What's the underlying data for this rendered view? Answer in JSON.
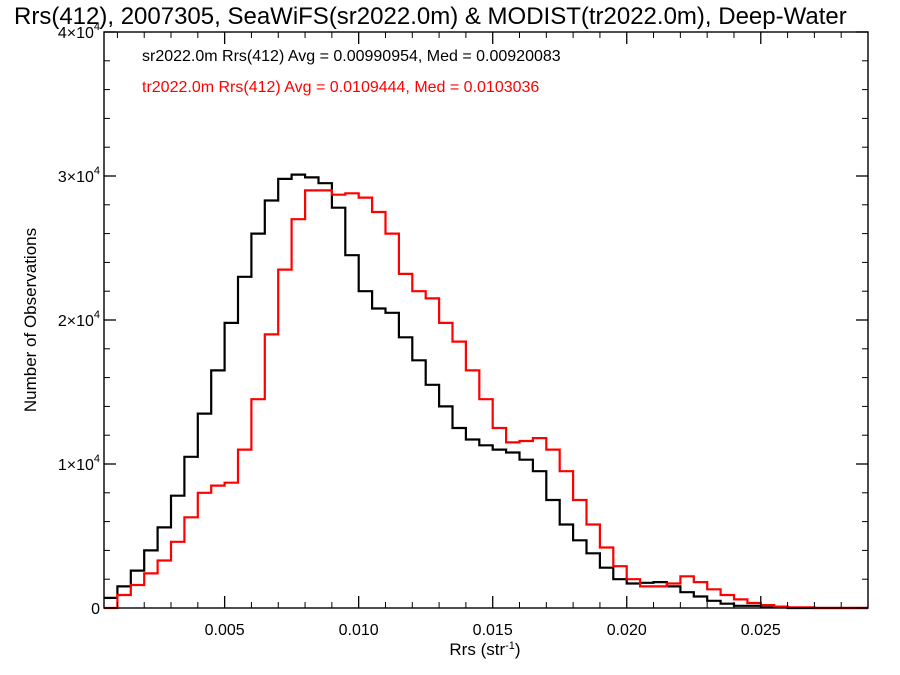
{
  "chart_data": {
    "type": "line",
    "title": "Rrs(412), 2007305, SeaWiFS(sr2022.0m) & MODIST(tr2022.0m), Deep-Water",
    "xlabel": "Rrs (str",
    "xlabel_sup": "-1",
    "xlabel_tail": ")",
    "ylabel": "Number of Observations",
    "xlim": [
      0.0005,
      0.029
    ],
    "ylim": [
      0,
      40000
    ],
    "x_ticks": [
      {
        "value": 0.005,
        "label": "0.005"
      },
      {
        "value": 0.01,
        "label": "0.010"
      },
      {
        "value": 0.015,
        "label": "0.015"
      },
      {
        "value": 0.02,
        "label": "0.020"
      },
      {
        "value": 0.025,
        "label": "0.025"
      }
    ],
    "y_ticks": [
      {
        "value": 0,
        "label": "0",
        "exp": ""
      },
      {
        "value": 10000,
        "label": "1×10",
        "exp": "4"
      },
      {
        "value": 20000,
        "label": "2×10",
        "exp": "4"
      },
      {
        "value": 30000,
        "label": "3×10",
        "exp": "4"
      },
      {
        "value": 40000,
        "label": "4×10",
        "exp": "4"
      }
    ],
    "legend": [
      {
        "text": "sr2022.0m Rrs(412) Avg = 0.00990954, Med = 0.00920083",
        "color": "#000000"
      },
      {
        "text": "tr2022.0m Rrs(412) Avg = 0.0109444, Med = 0.0103036",
        "color": "#ff0000"
      }
    ],
    "series": [
      {
        "color": "#000000",
        "points": [
          [
            0.0005,
            700
          ],
          [
            0.001,
            1500
          ],
          [
            0.0015,
            2600
          ],
          [
            0.002,
            4000
          ],
          [
            0.0025,
            5600
          ],
          [
            0.003,
            7800
          ],
          [
            0.0035,
            10500
          ],
          [
            0.004,
            13500
          ],
          [
            0.0045,
            16500
          ],
          [
            0.005,
            19800
          ],
          [
            0.0055,
            23000
          ],
          [
            0.006,
            26000
          ],
          [
            0.0065,
            28300
          ],
          [
            0.007,
            29800
          ],
          [
            0.0075,
            30100
          ],
          [
            0.008,
            29900
          ],
          [
            0.0085,
            29500
          ],
          [
            0.009,
            27800
          ],
          [
            0.0095,
            24500
          ],
          [
            0.01,
            22000
          ],
          [
            0.0105,
            20800
          ],
          [
            0.011,
            20500
          ],
          [
            0.0115,
            18800
          ],
          [
            0.012,
            17200
          ],
          [
            0.0125,
            15500
          ],
          [
            0.013,
            14000
          ],
          [
            0.0135,
            12500
          ],
          [
            0.014,
            11700
          ],
          [
            0.0145,
            11300
          ],
          [
            0.015,
            11000
          ],
          [
            0.0155,
            10800
          ],
          [
            0.016,
            10300
          ],
          [
            0.0165,
            9500
          ],
          [
            0.017,
            7500
          ],
          [
            0.0175,
            5800
          ],
          [
            0.018,
            4700
          ],
          [
            0.0185,
            3800
          ],
          [
            0.019,
            2800
          ],
          [
            0.0195,
            2000
          ],
          [
            0.02,
            1700
          ],
          [
            0.0205,
            1750
          ],
          [
            0.021,
            1800
          ],
          [
            0.0215,
            1500
          ],
          [
            0.022,
            1100
          ],
          [
            0.0225,
            800
          ],
          [
            0.023,
            500
          ],
          [
            0.0235,
            300
          ],
          [
            0.024,
            150
          ],
          [
            0.025,
            50
          ],
          [
            0.026,
            0
          ],
          [
            0.029,
            0
          ]
        ]
      },
      {
        "color": "#ff0000",
        "points": [
          [
            0.0005,
            0
          ],
          [
            0.001,
            900
          ],
          [
            0.0015,
            1600
          ],
          [
            0.002,
            2400
          ],
          [
            0.0025,
            3300
          ],
          [
            0.003,
            4600
          ],
          [
            0.0035,
            6300
          ],
          [
            0.004,
            8000
          ],
          [
            0.0045,
            8500
          ],
          [
            0.005,
            8700
          ],
          [
            0.0055,
            11000
          ],
          [
            0.006,
            14500
          ],
          [
            0.0065,
            19000
          ],
          [
            0.007,
            23500
          ],
          [
            0.0075,
            27000
          ],
          [
            0.008,
            29000
          ],
          [
            0.0085,
            29000
          ],
          [
            0.009,
            28700
          ],
          [
            0.0095,
            28800
          ],
          [
            0.01,
            28500
          ],
          [
            0.0105,
            27500
          ],
          [
            0.011,
            26000
          ],
          [
            0.0115,
            23200
          ],
          [
            0.012,
            22000
          ],
          [
            0.0125,
            21500
          ],
          [
            0.013,
            19800
          ],
          [
            0.0135,
            18500
          ],
          [
            0.014,
            16500
          ],
          [
            0.0145,
            14500
          ],
          [
            0.015,
            12500
          ],
          [
            0.0155,
            11500
          ],
          [
            0.016,
            11600
          ],
          [
            0.0165,
            11800
          ],
          [
            0.017,
            11000
          ],
          [
            0.0175,
            9500
          ],
          [
            0.018,
            7500
          ],
          [
            0.0185,
            5800
          ],
          [
            0.019,
            4200
          ],
          [
            0.0195,
            2900
          ],
          [
            0.02,
            2000
          ],
          [
            0.0205,
            1500
          ],
          [
            0.021,
            1500
          ],
          [
            0.0215,
            1700
          ],
          [
            0.022,
            2200
          ],
          [
            0.0225,
            1800
          ],
          [
            0.023,
            1300
          ],
          [
            0.0235,
            900
          ],
          [
            0.024,
            600
          ],
          [
            0.0245,
            350
          ],
          [
            0.025,
            200
          ],
          [
            0.0255,
            100
          ],
          [
            0.026,
            50
          ],
          [
            0.027,
            0
          ],
          [
            0.029,
            0
          ]
        ]
      }
    ]
  }
}
